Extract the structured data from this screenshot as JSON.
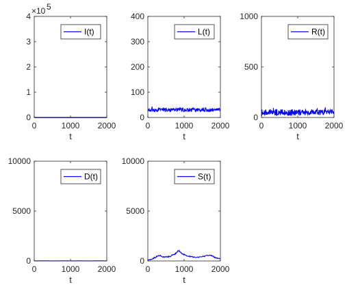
{
  "chart_data": [
    {
      "type": "line",
      "series": [
        {
          "name": "I(t)",
          "color": "#0000ff",
          "x_range": [
            0,
            2000
          ],
          "level": 0,
          "noise": 0
        }
      ],
      "xlabel": "t",
      "xlim": [
        0,
        2000
      ],
      "xticks": [
        "0",
        "1000",
        "2000"
      ],
      "ylim": [
        0,
        4
      ],
      "yticks": [
        "0",
        "1",
        "2",
        "3",
        "4"
      ],
      "y_multiplier": "×10",
      "y_exponent": "5",
      "grid": false,
      "legend": "top-right"
    },
    {
      "type": "line",
      "series": [
        {
          "name": "L(t)",
          "color": "#0000ff",
          "x_range": [
            0,
            2000
          ],
          "level": 30,
          "noise": 7
        }
      ],
      "xlabel": "t",
      "xlim": [
        0,
        2000
      ],
      "xticks": [
        "0",
        "1000",
        "2000"
      ],
      "ylim": [
        0,
        400
      ],
      "yticks": [
        "0",
        "100",
        "200",
        "300",
        "400"
      ],
      "grid": false,
      "legend": "top-right"
    },
    {
      "type": "line",
      "series": [
        {
          "name": "R(t)",
          "color": "#0000ff",
          "x_range": [
            0,
            2000
          ],
          "level": 50,
          "noise": 30
        }
      ],
      "xlabel": "t",
      "xlim": [
        0,
        2000
      ],
      "xticks": [
        "0",
        "1000",
        "2000"
      ],
      "ylim": [
        0,
        1000
      ],
      "yticks": [
        "0",
        "500",
        "1000"
      ],
      "grid": false,
      "legend": "top-right"
    },
    {
      "type": "line",
      "series": [
        {
          "name": "D(t)",
          "color": "#0000ff",
          "x_range": [
            0,
            2000
          ],
          "level": 10,
          "noise": 5
        }
      ],
      "xlabel": "t",
      "xlim": [
        0,
        2000
      ],
      "xticks": [
        "0",
        "1000",
        "2000"
      ],
      "ylim": [
        0,
        10000
      ],
      "yticks": [
        "0",
        "5000",
        "10000"
      ],
      "grid": false,
      "legend": "top-right"
    },
    {
      "type": "line",
      "series": [
        {
          "name": "S(t)",
          "color": "#0000ff",
          "x_range": [
            0,
            2000
          ],
          "points": [
            [
              0,
              80
            ],
            [
              150,
              250
            ],
            [
              300,
              550
            ],
            [
              450,
              380
            ],
            [
              600,
              450
            ],
            [
              750,
              700
            ],
            [
              850,
              1050
            ],
            [
              950,
              700
            ],
            [
              1100,
              500
            ],
            [
              1300,
              350
            ],
            [
              1500,
              420
            ],
            [
              1700,
              600
            ],
            [
              1850,
              350
            ],
            [
              2000,
              200
            ]
          ]
        }
      ],
      "xlabel": "t",
      "xlim": [
        0,
        2000
      ],
      "xticks": [
        "0",
        "1000",
        "2000"
      ],
      "ylim": [
        0,
        10000
      ],
      "yticks": [
        "0",
        "5000",
        "10000"
      ],
      "grid": false,
      "legend": "top-right"
    }
  ]
}
